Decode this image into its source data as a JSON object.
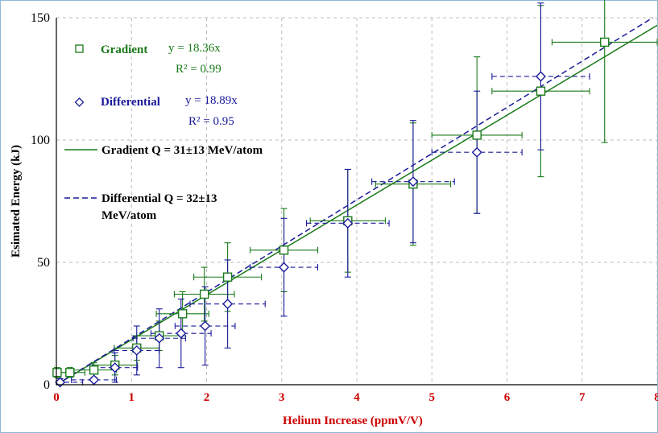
{
  "chart_data": {
    "type": "scatter",
    "xlabel": "Helium Increase (ppmV/V)",
    "ylabel": "Esimated Energy (kJ)",
    "xlim": [
      0,
      8
    ],
    "ylim": [
      0,
      150
    ],
    "xticks": [
      "0",
      "1",
      "2",
      "3",
      "4",
      "5",
      "6",
      "7",
      "8"
    ],
    "yticks": [
      "0",
      "50",
      "100",
      "150"
    ],
    "grid": true,
    "colors": {
      "gradient": "#1a7a1a",
      "differential": "#1a1a9a",
      "xaxis_text": "#cc0000"
    },
    "series": [
      {
        "name": "Gradient",
        "marker": "square",
        "fit_label": "y = 18.36x",
        "r2_label": "R² = 0.99",
        "fit_slope": 18.36,
        "fit_name": "Gradient Q = 31±13 MeV/atom",
        "points": [
          {
            "x": 0.01,
            "y": 5,
            "xerr": 0.2,
            "yerr": 2
          },
          {
            "x": 0.18,
            "y": 5,
            "xerr": 0.2,
            "yerr": 2
          },
          {
            "x": 0.5,
            "y": 6,
            "xerr": 0.3,
            "yerr": 3
          },
          {
            "x": 0.78,
            "y": 8,
            "xerr": 0.3,
            "yerr": 4
          },
          {
            "x": 1.07,
            "y": 15,
            "xerr": 0.3,
            "yerr": 5
          },
          {
            "x": 1.37,
            "y": 20,
            "xerr": 0.3,
            "yerr": 6
          },
          {
            "x": 1.68,
            "y": 29,
            "xerr": 0.35,
            "yerr": 9
          },
          {
            "x": 1.97,
            "y": 37,
            "xerr": 0.4,
            "yerr": 11
          },
          {
            "x": 2.28,
            "y": 44,
            "xerr": 0.45,
            "yerr": 14
          },
          {
            "x": 3.03,
            "y": 55,
            "xerr": 0.45,
            "yerr": 17
          },
          {
            "x": 3.88,
            "y": 67,
            "xerr": 0.5,
            "yerr": 21
          },
          {
            "x": 4.75,
            "y": 82,
            "xerr": 0.5,
            "yerr": 25
          },
          {
            "x": 5.6,
            "y": 102,
            "xerr": 0.6,
            "yerr": 32
          },
          {
            "x": 6.45,
            "y": 120,
            "xerr": 0.65,
            "yerr": 35
          },
          {
            "x": 7.3,
            "y": 140,
            "xerr": 0.7,
            "yerr": 41
          }
        ]
      },
      {
        "name": "Differential",
        "marker": "diamond",
        "fit_label": "y = 18.89x",
        "r2_label": "R² = 0.95",
        "fit_slope": 18.89,
        "fit_name": "Differential Q = 32±13 MeV/atom",
        "points": [
          {
            "x": 0.05,
            "y": 1,
            "xerr": 0.3,
            "yerr": 1.5
          },
          {
            "x": 0.5,
            "y": 2,
            "xerr": 0.3,
            "yerr": 2.5
          },
          {
            "x": 0.78,
            "y": 7,
            "xerr": 0.3,
            "yerr": 6
          },
          {
            "x": 1.07,
            "y": 14,
            "xerr": 0.3,
            "yerr": 10
          },
          {
            "x": 1.37,
            "y": 19,
            "xerr": 0.35,
            "yerr": 12
          },
          {
            "x": 1.66,
            "y": 21,
            "xerr": 0.4,
            "yerr": 14
          },
          {
            "x": 1.98,
            "y": 24,
            "xerr": 0.4,
            "yerr": 16
          },
          {
            "x": 2.28,
            "y": 33,
            "xerr": 0.5,
            "yerr": 18
          },
          {
            "x": 3.03,
            "y": 48,
            "xerr": 0.45,
            "yerr": 20
          },
          {
            "x": 3.88,
            "y": 66,
            "xerr": 0.55,
            "yerr": 22
          },
          {
            "x": 4.75,
            "y": 83,
            "xerr": 0.55,
            "yerr": 25
          },
          {
            "x": 5.6,
            "y": 95,
            "xerr": 0.6,
            "yerr": 25
          },
          {
            "x": 6.45,
            "y": 126,
            "xerr": 0.65,
            "yerr": 30
          }
        ]
      }
    ]
  }
}
